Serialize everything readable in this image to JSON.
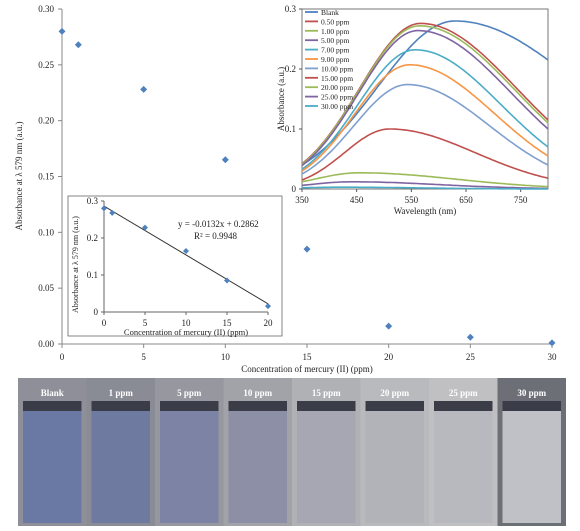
{
  "chart_data": [
    {
      "id": "main",
      "type": "scatter",
      "xlabel": "Concentration of mercury (II) (ppm)",
      "ylabel": "Absorbance at λ 579 nm (a.u.)",
      "xlim": [
        0,
        30
      ],
      "ylim": [
        0,
        0.3
      ],
      "xticks": [
        0,
        5,
        10,
        15,
        20,
        25,
        30
      ],
      "yticks": [
        0.0,
        0.05,
        0.1,
        0.15,
        0.2,
        0.25,
        0.3
      ],
      "ytick_labels": [
        "0.00",
        "0.05",
        "0.10",
        "0.15",
        "0.20",
        "0.25",
        "0.30"
      ],
      "grid": false,
      "marker_color": "#4f81bd",
      "points": [
        {
          "x": 0,
          "y": 0.28
        },
        {
          "x": 1,
          "y": 0.268
        },
        {
          "x": 5,
          "y": 0.228
        },
        {
          "x": 10,
          "y": 0.165
        },
        {
          "x": 15,
          "y": 0.085
        },
        {
          "x": 20,
          "y": 0.016
        },
        {
          "x": 25,
          "y": 0.006
        },
        {
          "x": 30,
          "y": 0.001
        }
      ]
    },
    {
      "id": "spectra",
      "type": "line",
      "xlabel": "Wavelength (nm)",
      "ylabel": "Absorbance (a.u.)",
      "xlim": [
        350,
        800
      ],
      "ylim": [
        0,
        0.3
      ],
      "xticks": [
        350,
        450,
        550,
        650,
        750
      ],
      "yticks": [
        0,
        0.1,
        0.2,
        0.3
      ],
      "ytick_labels": [
        "0",
        "0.1",
        "0.2",
        "0.3"
      ],
      "grid": false,
      "legend_position": "top-left",
      "series": [
        {
          "name": "Blank",
          "color": "#4f81bd",
          "peak_x": 630,
          "peak_y": 0.28,
          "start_y": 0.04,
          "end_y": 0.215
        },
        {
          "name": "0.50 ppm",
          "color": "#c0504d",
          "peak_x": 567,
          "peak_y": 0.276,
          "start_y": 0.042,
          "end_y": 0.115
        },
        {
          "name": "1.00 ppm",
          "color": "#9bbb59",
          "peak_x": 565,
          "peak_y": 0.272,
          "start_y": 0.041,
          "end_y": 0.11
        },
        {
          "name": "5.00 ppm",
          "color": "#8064a2",
          "peak_x": 562,
          "peak_y": 0.264,
          "start_y": 0.039,
          "end_y": 0.1
        },
        {
          "name": "7.00 ppm",
          "color": "#4bacc6",
          "peak_x": 557,
          "peak_y": 0.232,
          "start_y": 0.033,
          "end_y": 0.07
        },
        {
          "name": "9.00 ppm",
          "color": "#f79646",
          "peak_x": 547,
          "peak_y": 0.207,
          "start_y": 0.03,
          "end_y": 0.055
        },
        {
          "name": "10.00 ppm",
          "color": "#7f9fcf",
          "peak_x": 543,
          "peak_y": 0.174,
          "start_y": 0.025,
          "end_y": 0.04
        },
        {
          "name": "15.00 ppm",
          "color": "#c0504d",
          "peak_x": 510,
          "peak_y": 0.1,
          "start_y": 0.015,
          "end_y": 0.018
        },
        {
          "name": "20.00 ppm",
          "color": "#9bbb59",
          "peak_x": 455,
          "peak_y": 0.027,
          "start_y": 0.012,
          "end_y": 0.004
        },
        {
          "name": "25.00 ppm",
          "color": "#8064a2",
          "peak_x": 440,
          "peak_y": 0.012,
          "start_y": 0.006,
          "end_y": 0.001
        },
        {
          "name": "30.00 ppm",
          "color": "#4bacc6",
          "peak_x": 420,
          "peak_y": 0.003,
          "start_y": 0.002,
          "end_y": 0.0
        }
      ]
    },
    {
      "id": "calibration",
      "type": "scatter",
      "xlabel": "Concentration of mercury (II) (ppm)",
      "ylabel": "Absorbance at λ 579 nm (a.u.)",
      "xlim": [
        0,
        20
      ],
      "ylim": [
        0,
        0.3
      ],
      "xticks": [
        0,
        5,
        10,
        15,
        20
      ],
      "yticks": [
        0,
        0.1,
        0.2,
        0.3
      ],
      "ytick_labels": [
        "0",
        "0.1",
        "0.2",
        "0.3"
      ],
      "grid": false,
      "marker_color": "#4f81bd",
      "points": [
        {
          "x": 0,
          "y": 0.28
        },
        {
          "x": 1,
          "y": 0.268
        },
        {
          "x": 5,
          "y": 0.228
        },
        {
          "x": 10,
          "y": 0.165
        },
        {
          "x": 15,
          "y": 0.085
        },
        {
          "x": 20,
          "y": 0.016
        }
      ],
      "trendline": {
        "slope": -0.0132,
        "intercept": 0.2862
      },
      "equation": "y = -0.0132x + 0.2862",
      "r2": "R² = 0.9948"
    }
  ],
  "vials": [
    {
      "label": "Blank",
      "fill_color": "#6a78a4",
      "bg_color": "#8e8f98"
    },
    {
      "label": "1 ppm",
      "fill_color": "#6e7aa0",
      "bg_color": "#8a8c95"
    },
    {
      "label": "5 ppm",
      "fill_color": "#7c83a4",
      "bg_color": "#96979f"
    },
    {
      "label": "10 ppm",
      "fill_color": "#8d8fa7",
      "bg_color": "#a2a3a9"
    },
    {
      "label": "15 ppm",
      "fill_color": "#a6a7b3",
      "bg_color": "#b0b1b5"
    },
    {
      "label": "20 ppm",
      "fill_color": "#b1b3b9",
      "bg_color": "#b9babd"
    },
    {
      "label": "25 ppm",
      "fill_color": "#b8b9bf",
      "bg_color": "#c0c0c3"
    },
    {
      "label": "30 ppm",
      "fill_color": "#bfc1c6",
      "bg_color": "#6c7076"
    }
  ]
}
